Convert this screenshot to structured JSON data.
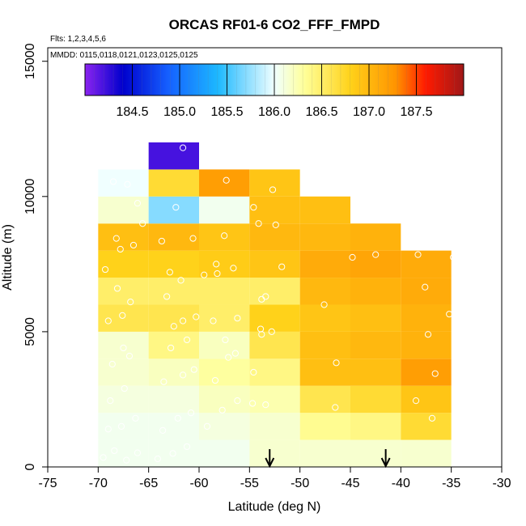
{
  "chart_data": {
    "type": "heatmap",
    "title": "ORCAS RF01-6 CO2_FFF_FMPD",
    "flights_note": "Flts: 1,2,3,4,5,6",
    "dates_note": "MMDD: 0115,0118,0121,0123,0125,0125",
    "xlabel": "Latitude (deg N)",
    "ylabel": "Altitude (m)",
    "xlim": [
      -75,
      -30
    ],
    "ylim": [
      0,
      15500
    ],
    "x_ticks": [
      -75,
      -70,
      -65,
      -60,
      -55,
      -50,
      -45,
      -40,
      -35,
      -30
    ],
    "x_tick_labels": [
      "-75",
      "-70",
      "-65",
      "-60",
      "-55",
      "-50",
      "-45",
      "-40",
      "-35",
      "-30"
    ],
    "y_ticks": [
      0,
      5000,
      10000,
      15000
    ],
    "y_tick_labels": [
      "0",
      "5000",
      "10000",
      "15000"
    ],
    "colorbar": {
      "range": [
        184.0,
        188.0
      ],
      "ticks": [
        184.5,
        185.0,
        185.5,
        186.0,
        186.5,
        187.0,
        187.5
      ],
      "tick_labels": [
        "184.5",
        "185.0",
        "185.5",
        "186.0",
        "186.5",
        "187.0",
        "187.5"
      ]
    },
    "cell_width_deg": 5,
    "cell_height_m": 1000,
    "columns": [
      {
        "lat_start": -70,
        "cells": [
          {
            "alt": 0,
            "value": 186.05
          },
          {
            "alt": 1000,
            "value": 186.05
          },
          {
            "alt": 2000,
            "value": 186.1
          },
          {
            "alt": 3000,
            "value": 186.15
          },
          {
            "alt": 4000,
            "value": 186.15
          },
          {
            "alt": 5000,
            "value": 186.6
          },
          {
            "alt": 6000,
            "value": 186.5
          },
          {
            "alt": 7000,
            "value": 186.8
          },
          {
            "alt": 8000,
            "value": 186.95
          },
          {
            "alt": 9000,
            "value": 186.15
          },
          {
            "alt": 10000,
            "value": 186.0
          }
        ]
      },
      {
        "lat_start": -65,
        "cells": [
          {
            "alt": 0,
            "value": 186.05
          },
          {
            "alt": 1000,
            "value": 186.05
          },
          {
            "alt": 2000,
            "value": 186.1
          },
          {
            "alt": 3000,
            "value": 186.2
          },
          {
            "alt": 4000,
            "value": 186.4
          },
          {
            "alt": 5000,
            "value": 186.6
          },
          {
            "alt": 6000,
            "value": 186.5
          },
          {
            "alt": 7000,
            "value": 186.8
          },
          {
            "alt": 8000,
            "value": 187.0
          },
          {
            "alt": 9000,
            "value": 185.7
          },
          {
            "alt": 10000,
            "value": 186.7
          },
          {
            "alt": 11000,
            "value": 184.2
          }
        ]
      },
      {
        "lat_start": -60,
        "cells": [
          {
            "alt": 0,
            "value": 186.05
          },
          {
            "alt": 1000,
            "value": 186.1
          },
          {
            "alt": 2000,
            "value": 186.2
          },
          {
            "alt": 3000,
            "value": 186.3
          },
          {
            "alt": 4000,
            "value": 186.2
          },
          {
            "alt": 5000,
            "value": 186.5
          },
          {
            "alt": 6000,
            "value": 186.5
          },
          {
            "alt": 7000,
            "value": 186.85
          },
          {
            "alt": 8000,
            "value": 186.9
          },
          {
            "alt": 9000,
            "value": 186.05
          },
          {
            "alt": 10000,
            "value": 187.2
          }
        ]
      },
      {
        "lat_start": -55,
        "cells": [
          {
            "alt": 0,
            "value": 186.15
          },
          {
            "alt": 1000,
            "value": 186.15
          },
          {
            "alt": 2000,
            "value": 186.25
          },
          {
            "alt": 3000,
            "value": 186.4
          },
          {
            "alt": 4000,
            "value": 186.6
          },
          {
            "alt": 5000,
            "value": 186.8
          },
          {
            "alt": 6000,
            "value": 186.5
          },
          {
            "alt": 7000,
            "value": 186.9
          },
          {
            "alt": 8000,
            "value": 187.0
          },
          {
            "alt": 9000,
            "value": 186.95
          },
          {
            "alt": 10000,
            "value": 186.9
          }
        ]
      },
      {
        "lat_start": -50,
        "cells": [
          {
            "alt": 0,
            "value": 186.15
          },
          {
            "alt": 1000,
            "value": 186.35
          },
          {
            "alt": 2000,
            "value": 186.6
          },
          {
            "alt": 3000,
            "value": 186.95
          },
          {
            "alt": 4000,
            "value": 186.95
          },
          {
            "alt": 5000,
            "value": 186.9
          },
          {
            "alt": 6000,
            "value": 187.0
          },
          {
            "alt": 7000,
            "value": 187.1
          },
          {
            "alt": 8000,
            "value": 187.0
          },
          {
            "alt": 9000,
            "value": 186.95
          }
        ]
      },
      {
        "lat_start": -45,
        "cells": [
          {
            "alt": 0,
            "value": 186.15
          },
          {
            "alt": 1000,
            "value": 186.4
          },
          {
            "alt": 2000,
            "value": 186.7
          },
          {
            "alt": 3000,
            "value": 186.95
          },
          {
            "alt": 4000,
            "value": 187.0
          },
          {
            "alt": 5000,
            "value": 186.95
          },
          {
            "alt": 6000,
            "value": 187.05
          },
          {
            "alt": 7000,
            "value": 187.15
          },
          {
            "alt": 8000,
            "value": 187.05
          }
        ]
      },
      {
        "lat_start": -40,
        "cells": [
          {
            "alt": 0,
            "value": 186.15
          },
          {
            "alt": 1000,
            "value": 186.7
          },
          {
            "alt": 2000,
            "value": 186.9
          },
          {
            "alt": 3000,
            "value": 187.2
          },
          {
            "alt": 4000,
            "value": 187.05
          },
          {
            "alt": 5000,
            "value": 187.05
          },
          {
            "alt": 6000,
            "value": 187.1
          },
          {
            "alt": 7000,
            "value": 187.1
          }
        ]
      }
    ],
    "observations": [
      [
        -69.5,
        350
      ],
      [
        -68.4,
        600
      ],
      [
        -67.2,
        250
      ],
      [
        -66.1,
        520
      ],
      [
        -69,
        1400
      ],
      [
        -67.7,
        1500
      ],
      [
        -66.3,
        1800
      ],
      [
        -68.8,
        2450
      ],
      [
        -67.4,
        2900
      ],
      [
        -68.6,
        3800
      ],
      [
        -67.5,
        4400
      ],
      [
        -66.9,
        4100
      ],
      [
        -69,
        5400
      ],
      [
        -67.6,
        5600
      ],
      [
        -66.8,
        6100
      ],
      [
        -68.1,
        6600
      ],
      [
        -69.3,
        7300
      ],
      [
        -67.8,
        8050
      ],
      [
        -68.2,
        8450
      ],
      [
        -66.5,
        8200
      ],
      [
        -67.1,
        10450
      ],
      [
        -68.5,
        10550
      ],
      [
        -65.6,
        9000
      ],
      [
        -66.1,
        9750
      ],
      [
        -64.1,
        300
      ],
      [
        -62.6,
        500
      ],
      [
        -61.2,
        750
      ],
      [
        -63.6,
        1350
      ],
      [
        -62.1,
        1800
      ],
      [
        -60.8,
        2000
      ],
      [
        -63.5,
        3150
      ],
      [
        -61.6,
        3400
      ],
      [
        -60.5,
        3600
      ],
      [
        -62.8,
        4400
      ],
      [
        -61.2,
        4700
      ],
      [
        -62.5,
        5200
      ],
      [
        -61.6,
        5400
      ],
      [
        -60.3,
        5550
      ],
      [
        -63.2,
        6300
      ],
      [
        -61.8,
        6900
      ],
      [
        -62.9,
        7200
      ],
      [
        -63.7,
        8350
      ],
      [
        -60.6,
        8450
      ],
      [
        -62.3,
        9600
      ],
      [
        -61.6,
        11800
      ],
      [
        -59.2,
        1500
      ],
      [
        -57.7,
        2100
      ],
      [
        -56.2,
        2450
      ],
      [
        -58.4,
        3200
      ],
      [
        -57.1,
        4050
      ],
      [
        -56.4,
        4200
      ],
      [
        -58.6,
        5400
      ],
      [
        -57.4,
        4700
      ],
      [
        -56.2,
        5500
      ],
      [
        -59.5,
        7100
      ],
      [
        -58.2,
        7150
      ],
      [
        -56.6,
        7350
      ],
      [
        -57.5,
        8550
      ],
      [
        -58.3,
        7500
      ],
      [
        -57.3,
        10600
      ],
      [
        -54.7,
        2350
      ],
      [
        -53.4,
        2300
      ],
      [
        -54.6,
        3500
      ],
      [
        -53.9,
        5100
      ],
      [
        -52.8,
        5000
      ],
      [
        -53.8,
        6200
      ],
      [
        -53.4,
        6300
      ],
      [
        -52.4,
        8950
      ],
      [
        -54.6,
        9600
      ],
      [
        -54.1,
        9000
      ],
      [
        -52.7,
        10250
      ],
      [
        -51.8,
        7400
      ],
      [
        -53.8,
        4900
      ],
      [
        -47.6,
        6000
      ],
      [
        -46.4,
        3850
      ],
      [
        -46.5,
        2200
      ],
      [
        -44.8,
        7750
      ],
      [
        -42.5,
        7850
      ],
      [
        -38.3,
        7850
      ],
      [
        -37.6,
        6650
      ],
      [
        -37.3,
        4900
      ],
      [
        -36.6,
        3450
      ],
      [
        -38.5,
        2450
      ],
      [
        -36.9,
        1800
      ],
      [
        -34.8,
        7750
      ],
      [
        -35.2,
        5650
      ]
    ],
    "arrows_lat": [
      -53,
      -41.5
    ]
  }
}
